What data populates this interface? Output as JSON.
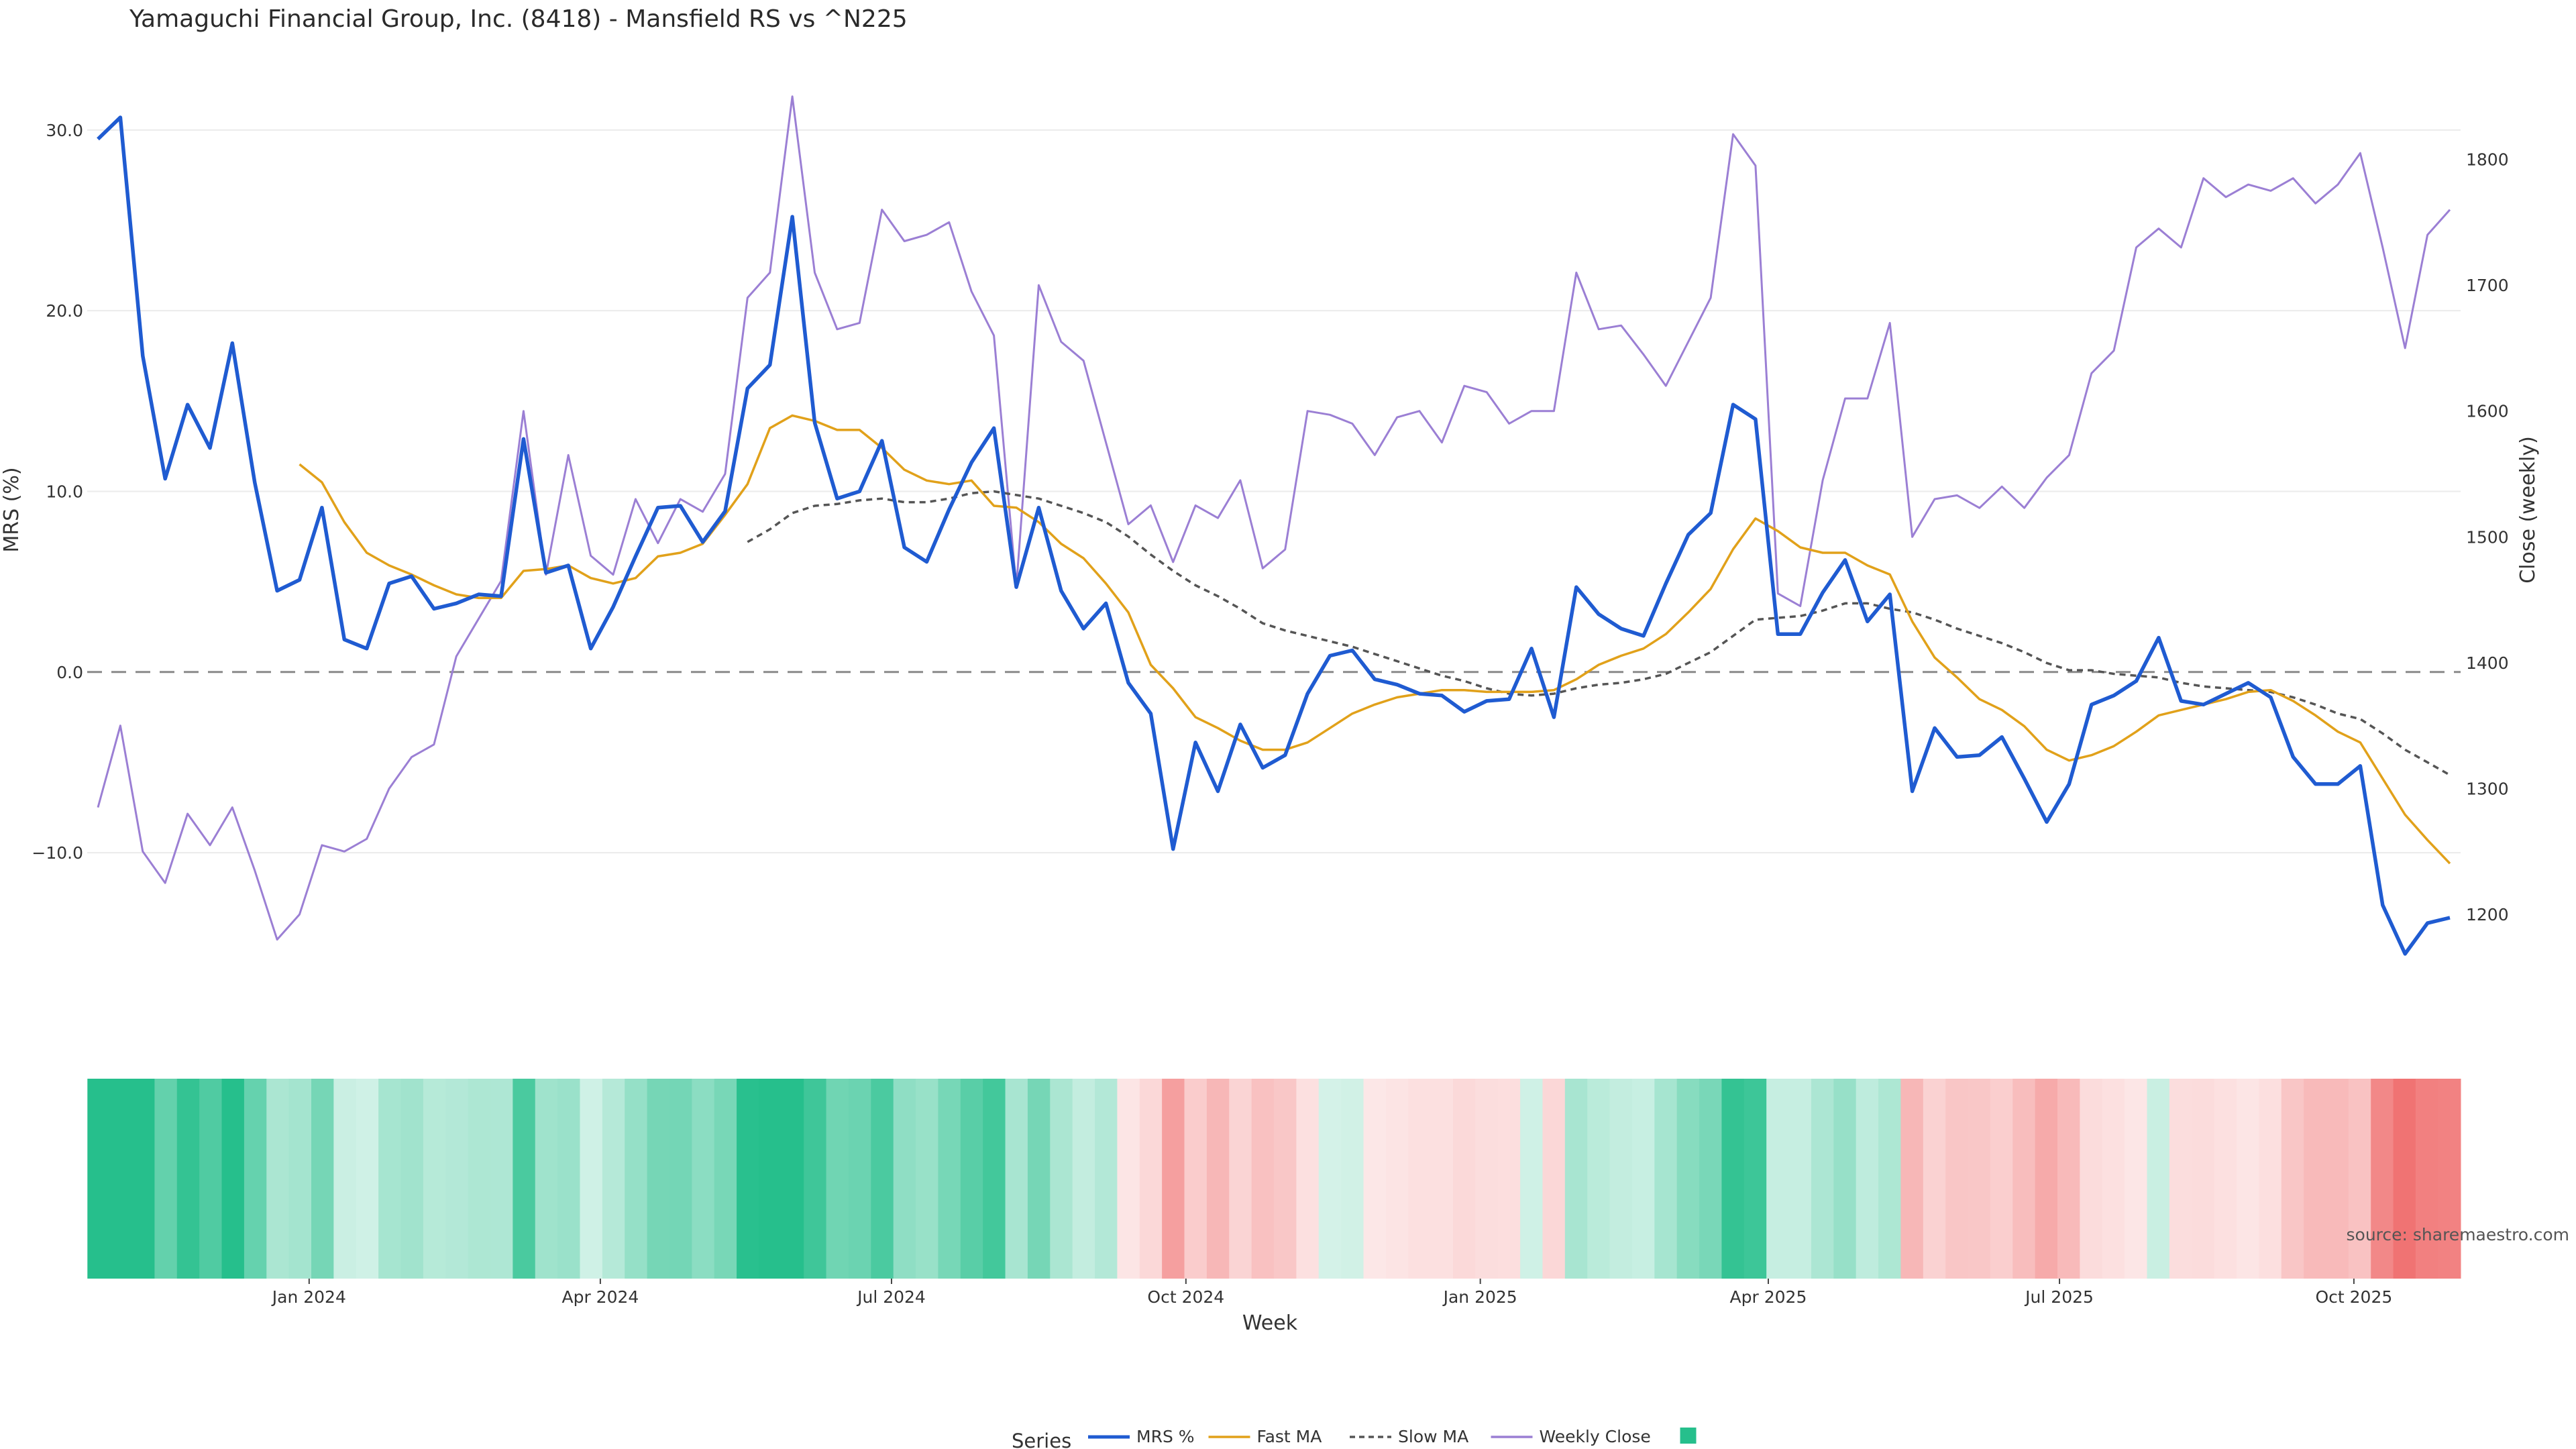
{
  "chart_data": {
    "type": "line",
    "title": "Yamaguchi Financial Group, Inc. (8418) - Mansfield RS vs ^N225",
    "xlabel": "Week",
    "ylabel_left": "MRS (%)",
    "ylabel_right": "Close (weekly)",
    "x_start": "2023-10-27",
    "x_step_days": 7,
    "x_ticks": [
      {
        "date": "2024-01-01",
        "label": "Jan 2024"
      },
      {
        "date": "2024-04-01",
        "label": "Apr 2024"
      },
      {
        "date": "2024-07-01",
        "label": "Jul 2024"
      },
      {
        "date": "2024-10-01",
        "label": "Oct 2024"
      },
      {
        "date": "2025-01-01",
        "label": "Jan 2025"
      },
      {
        "date": "2025-04-01",
        "label": "Apr 2025"
      },
      {
        "date": "2025-07-01",
        "label": "Jul 2025"
      },
      {
        "date": "2025-10-01",
        "label": "Oct 2025"
      }
    ],
    "y_left": {
      "range": [
        -18.5,
        32
      ],
      "ticks": [
        30,
        20,
        10,
        0,
        -10
      ],
      "tick_labels": [
        "30.0",
        "20.0",
        "10.0",
        "0.0",
        "−10.0"
      ]
    },
    "y_right": {
      "range": [
        1127,
        1852
      ],
      "ticks": [
        1800,
        1700,
        1600,
        1500,
        1400,
        1300,
        1200
      ],
      "tick_labels": [
        "1800",
        "1700",
        "1600",
        "1500",
        "1400",
        "1300",
        "1200"
      ]
    },
    "zero_line": 0,
    "grid": true,
    "series": [
      {
        "name": "MRS %",
        "axis": "left",
        "color": "#1f5bd1",
        "style": "solid",
        "values": [
          29.5,
          30.7,
          17.5,
          10.7,
          14.8,
          12.4,
          18.2,
          10.5,
          4.5,
          5.1,
          9.1,
          1.8,
          1.3,
          4.9,
          5.3,
          3.5,
          3.8,
          4.3,
          4.2,
          12.9,
          5.5,
          5.9,
          1.3,
          3.6,
          6.4,
          9.1,
          9.2,
          7.2,
          8.9,
          15.7,
          17.0,
          25.2,
          13.8,
          9.6,
          10.0,
          12.8,
          6.9,
          6.1,
          9.0,
          11.6,
          13.5,
          4.7,
          9.1,
          4.5,
          2.4,
          3.8,
          -0.6,
          -2.3,
          -9.8,
          -3.9,
          -6.6,
          -2.9,
          -5.3,
          -4.6,
          -1.2,
          0.9,
          1.2,
          -0.4,
          -0.7,
          -1.2,
          -1.3,
          -2.2,
          -1.6,
          -1.5,
          1.3,
          -2.5,
          4.7,
          3.2,
          2.4,
          2.0,
          4.9,
          7.6,
          8.8,
          14.8,
          14.0,
          2.1,
          2.1,
          4.4,
          6.2,
          2.8,
          4.3,
          -6.6,
          -3.1,
          -4.7,
          -4.6,
          -3.6,
          -5.9,
          -8.3,
          -6.2,
          -1.8,
          -1.3,
          -0.5,
          1.9,
          -1.6,
          -1.8,
          -1.2,
          -0.6,
          -1.4,
          -4.7,
          -6.2,
          -6.2,
          -5.2,
          -12.9,
          -15.6,
          -13.9,
          -13.6
        ]
      },
      {
        "name": "Fast MA",
        "axis": "left",
        "color": "#e1a11a",
        "style": "solid",
        "values": [
          null,
          null,
          null,
          null,
          null,
          null,
          null,
          null,
          null,
          11.5,
          10.5,
          8.3,
          6.6,
          5.9,
          5.4,
          4.8,
          4.3,
          4.1,
          4.1,
          5.6,
          5.7,
          5.9,
          5.2,
          4.9,
          5.2,
          6.4,
          6.6,
          7.1,
          8.7,
          10.4,
          13.5,
          14.2,
          13.9,
          13.4,
          13.4,
          12.4,
          11.2,
          10.6,
          10.4,
          10.6,
          9.2,
          9.1,
          8.3,
          7.1,
          6.3,
          4.9,
          3.3,
          0.4,
          -0.9,
          -2.5,
          -3.1,
          -3.8,
          -4.3,
          -4.3,
          -3.9,
          -3.1,
          -2.3,
          -1.8,
          -1.4,
          -1.2,
          -1.0,
          -1.0,
          -1.1,
          -1.1,
          -1.1,
          -1.0,
          -0.4,
          0.4,
          0.9,
          1.3,
          2.1,
          3.3,
          4.6,
          6.8,
          8.5,
          7.8,
          6.9,
          6.6,
          6.6,
          5.9,
          5.4,
          2.8,
          0.8,
          -0.3,
          -1.5,
          -2.1,
          -3.0,
          -4.3,
          -4.9,
          -4.6,
          -4.1,
          -3.3,
          -2.4,
          -2.1,
          -1.8,
          -1.5,
          -1.1,
          -1.0,
          -1.6,
          -2.4,
          -3.3,
          -3.9,
          -5.9,
          -7.9,
          -9.3,
          -10.6
        ]
      },
      {
        "name": "Slow MA",
        "axis": "left",
        "color": "#555555",
        "style": "dashed",
        "values": [
          null,
          null,
          null,
          null,
          null,
          null,
          null,
          null,
          null,
          null,
          null,
          null,
          null,
          null,
          null,
          null,
          null,
          null,
          null,
          null,
          null,
          null,
          null,
          null,
          null,
          null,
          null,
          null,
          null,
          7.2,
          7.9,
          8.8,
          9.2,
          9.3,
          9.5,
          9.6,
          9.4,
          9.4,
          9.6,
          9.9,
          10.0,
          9.8,
          9.6,
          9.2,
          8.8,
          8.3,
          7.5,
          6.5,
          5.6,
          4.8,
          4.2,
          3.5,
          2.7,
          2.3,
          2.0,
          1.7,
          1.4,
          1.0,
          0.6,
          0.2,
          -0.2,
          -0.5,
          -0.9,
          -1.2,
          -1.3,
          -1.2,
          -0.9,
          -0.7,
          -0.6,
          -0.4,
          -0.1,
          0.5,
          1.1,
          2.0,
          2.9,
          3.0,
          3.1,
          3.4,
          3.8,
          3.8,
          3.5,
          3.3,
          2.9,
          2.4,
          2.0,
          1.6,
          1.1,
          0.5,
          0.1,
          0.1,
          -0.1,
          -0.2,
          -0.3,
          -0.6,
          -0.8,
          -0.9,
          -1.0,
          -1.1,
          -1.4,
          -1.8,
          -2.3,
          -2.6,
          -3.4,
          -4.3,
          -5.0,
          -5.7
        ]
      },
      {
        "name": "Weekly Close",
        "axis": "right",
        "color": "#9b7fd4",
        "style": "solid",
        "values": [
          1285,
          1350,
          1250,
          1225,
          1280,
          1255,
          1285,
          1235,
          1180,
          1200,
          1255,
          1250,
          1260,
          1300,
          1325,
          1335,
          1405,
          1435,
          1465,
          1600,
          1470,
          1565,
          1485,
          1470,
          1530,
          1495,
          1530,
          1520,
          1550,
          1690,
          1710,
          1850,
          1710,
          1665,
          1670,
          1760,
          1735,
          1740,
          1750,
          1695,
          1660,
          1460,
          1700,
          1655,
          1640,
          1575,
          1510,
          1525,
          1480,
          1525,
          1515,
          1545,
          1475,
          1490,
          1600,
          1597,
          1590,
          1565,
          1595,
          1600,
          1575,
          1620,
          1615,
          1590,
          1600,
          1600,
          1710,
          1665,
          1668,
          1645,
          1620,
          1655,
          1690,
          1820,
          1795,
          1455,
          1445,
          1545,
          1610,
          1610,
          1670,
          1500,
          1530,
          1533,
          1523,
          1540,
          1523,
          1547,
          1565,
          1630,
          1648,
          1730,
          1745,
          1730,
          1785,
          1770,
          1780,
          1775,
          1785,
          1765,
          1780,
          1805,
          1730,
          1650,
          1740,
          1760
        ]
      }
    ],
    "heatmap_strip": {
      "values": [
        29.5,
        30.7,
        17.5,
        10.7,
        14.8,
        12.4,
        18.2,
        10.5,
        4.5,
        5.1,
        9.1,
        1.8,
        1.3,
        4.9,
        5.3,
        3.5,
        3.8,
        4.3,
        4.2,
        12.9,
        5.5,
        5.9,
        1.3,
        3.6,
        6.4,
        9.1,
        9.2,
        7.2,
        8.9,
        15.7,
        17.0,
        25.2,
        13.8,
        9.6,
        10.0,
        12.8,
        6.9,
        6.1,
        9.0,
        11.6,
        13.5,
        4.7,
        9.1,
        4.5,
        2.4,
        3.8,
        -0.6,
        -2.3,
        -9.8,
        -3.9,
        -6.6,
        -2.9,
        -5.3,
        -4.6,
        -1.2,
        0.9,
        1.2,
        -0.4,
        -0.7,
        -1.2,
        -1.3,
        -2.2,
        -1.6,
        -1.5,
        1.3,
        -2.5,
        4.7,
        3.2,
        2.4,
        2.0,
        4.9,
        7.6,
        8.8,
        14.8,
        14.0,
        2.1,
        2.1,
        4.4,
        6.2,
        2.8,
        4.3,
        -6.6,
        -3.1,
        -4.7,
        -4.6,
        -3.6,
        -5.9,
        -8.3,
        -6.2,
        -1.8,
        -1.3,
        -0.5,
        1.9,
        -1.6,
        -1.8,
        -1.2,
        -0.6,
        -1.4,
        -4.7,
        -6.2,
        -6.2,
        -5.2,
        -12.9,
        -15.6,
        -13.9,
        -13.6
      ],
      "positive_color": "#26bf8c",
      "negative_color": "#f07070"
    },
    "legend": {
      "title": "Series",
      "placement": "bottom-center",
      "items": [
        "MRS %",
        "Fast MA",
        "Slow MA",
        "Weekly Close",
        ""
      ]
    },
    "legend_swatch_color": "#26bf8c",
    "source": "source: sharemaestro.com"
  }
}
